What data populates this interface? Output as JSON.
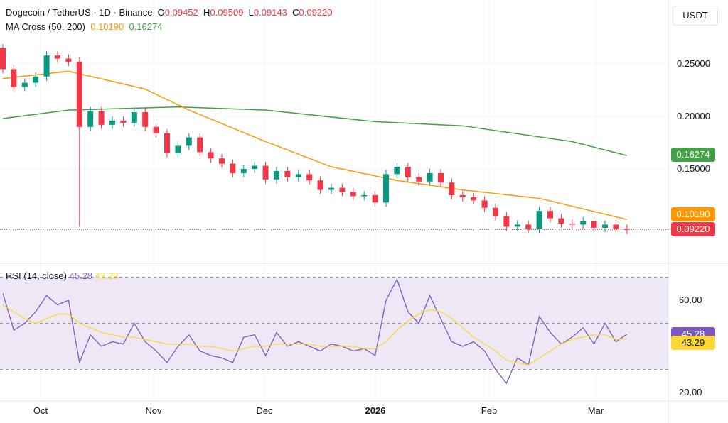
{
  "header": {
    "symbol": "Dogecoin / TetherUS · 1D · Binance",
    "o_label": "O",
    "o": "0.09452",
    "h_label": "H",
    "h": "0.09509",
    "l_label": "L",
    "l": "0.09143",
    "c_label": "C",
    "c": "0.09220",
    "ma_title": "MA Cross (50, 200)",
    "ma50": "0.10190",
    "ma200": "0.16274"
  },
  "rsi_header": {
    "title": "RSI (14, close)",
    "rsi": "45.28",
    "rsi_ma": "43.29"
  },
  "currency": "USDT",
  "colors": {
    "up": "#089981",
    "down": "#f23645",
    "ma50": "#ff9800",
    "ma200": "#43a047",
    "rsi": "#7e57c2",
    "rsi_ma": "#fdd835",
    "rsi_band": "#ede7f6"
  },
  "chart_data": [
    {
      "type": "candlestick",
      "price_ticks": [
        "0.25000",
        "0.20000",
        "0.15000"
      ],
      "ylim": [
        0.075,
        0.27
      ],
      "x_labels": [
        "Oct",
        "Nov",
        "Dec",
        "2026",
        "Feb",
        "Mar"
      ],
      "first_open": 0.265,
      "first_date": "Sep 20",
      "interval_days": 3,
      "close": [
        0.245,
        0.228,
        0.232,
        0.238,
        0.258,
        0.255,
        0.252,
        0.19,
        0.205,
        0.192,
        0.196,
        0.194,
        0.204,
        0.19,
        0.184,
        0.165,
        0.172,
        0.18,
        0.166,
        0.16,
        0.155,
        0.146,
        0.15,
        0.153,
        0.14,
        0.148,
        0.142,
        0.145,
        0.139,
        0.13,
        0.132,
        0.128,
        0.124,
        0.125,
        0.118,
        0.145,
        0.152,
        0.142,
        0.138,
        0.146,
        0.137,
        0.125,
        0.123,
        0.12,
        0.113,
        0.105,
        0.095,
        0.097,
        0.093,
        0.11,
        0.103,
        0.098,
        0.097,
        0.1,
        0.094,
        0.097,
        0.093,
        0.0922
      ],
      "notable_low": {
        "date": "Oct 10",
        "value": 0.095
      },
      "ma50": [
        [
          0,
          0.236
        ],
        [
          6,
          0.243
        ],
        [
          13,
          0.226
        ],
        [
          17,
          0.206
        ],
        [
          24,
          0.176
        ],
        [
          30,
          0.152
        ],
        [
          36,
          0.139
        ],
        [
          42,
          0.13
        ],
        [
          49,
          0.122
        ],
        [
          57,
          0.1019
        ]
      ],
      "ma200": [
        [
          0,
          0.198
        ],
        [
          6,
          0.206
        ],
        [
          16,
          0.209
        ],
        [
          24,
          0.206
        ],
        [
          34,
          0.195
        ],
        [
          42,
          0.191
        ],
        [
          52,
          0.176
        ],
        [
          57,
          0.16274
        ]
      ],
      "last_labels": [
        {
          "value": "0.16274",
          "color": "#43a047"
        },
        {
          "value": "0.10190",
          "color": "#ff9800"
        },
        {
          "value": "0.09220",
          "color": "#f23645"
        }
      ]
    },
    {
      "type": "line",
      "title": "RSI (14, close)",
      "ylim": [
        14,
        80
      ],
      "y_ticks": [
        "60.00",
        "20.00"
      ],
      "band": [
        30,
        70
      ],
      "midline": 50,
      "series": [
        {
          "name": "RSI",
          "values": [
            63,
            47,
            50,
            55,
            62,
            58,
            60,
            33,
            45,
            40,
            42,
            41,
            50,
            42,
            38,
            33,
            40,
            45,
            38,
            36,
            35,
            33,
            44,
            45,
            36,
            46,
            40,
            42,
            40,
            38,
            41,
            40,
            38,
            39,
            36,
            60,
            69,
            55,
            50,
            62,
            52,
            42,
            40,
            42,
            38,
            30,
            24,
            35,
            32,
            53,
            46,
            41,
            44,
            48,
            41,
            50,
            42,
            45.28
          ]
        },
        {
          "name": "RSI-based MA",
          "values": [
            58,
            55,
            52,
            50,
            52,
            54,
            54,
            50,
            48,
            46,
            45,
            44,
            44,
            43,
            42,
            41,
            41,
            41,
            40,
            40,
            39,
            38,
            39,
            40,
            40,
            41,
            41,
            41,
            41,
            40,
            40,
            40,
            40,
            39,
            39,
            42,
            47,
            51,
            54,
            56,
            55,
            52,
            48,
            44,
            41,
            38,
            34,
            33,
            32,
            35,
            38,
            41,
            43,
            44,
            45,
            45,
            43,
            43.29
          ]
        }
      ],
      "last_labels": [
        {
          "value": "45.28",
          "color": "#7e57c2"
        },
        {
          "value": "43.29",
          "color": "#fdd835"
        }
      ]
    }
  ]
}
